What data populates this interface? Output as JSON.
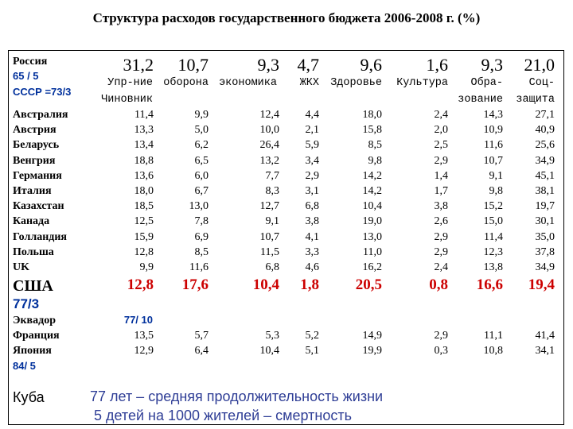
{
  "title": "Структура расходов государственного  бюджета 2006-2008 г. (%)",
  "russia": {
    "label": "Россия",
    "life_stat": "65 / 5",
    "ussr_stat": "СССР  =73/3",
    "values": [
      "31,2",
      "10,7",
      "9,3",
      "4,7",
      "9,6",
      "1,6",
      "9,3",
      "21,0"
    ]
  },
  "headers": {
    "col1_line1": "Упр-ние",
    "col1_line2": "Чиновник",
    "col2": "оборона",
    "col3": "экономика",
    "col4": "ЖКХ",
    "col5": "Здоровье",
    "col6": "Культура",
    "col7_line1": "Обра-",
    "col7_line2": "зование",
    "col8_line1": "Соц-",
    "col8_line2": "защита"
  },
  "rows": [
    {
      "country": "Австралия",
      "values": [
        "11,4",
        "9,9",
        "12,4",
        "4,4",
        "18,0",
        "2,4",
        "14,3",
        "27,1"
      ]
    },
    {
      "country": "Австрия",
      "values": [
        "13,3",
        "5,0",
        "10,0",
        "2,1",
        "15,8",
        "2,0",
        "10,9",
        "40,9"
      ]
    },
    {
      "country": "Беларусь",
      "values": [
        "13,4",
        "6,2",
        "26,4",
        "5,9",
        "8,5",
        "2,5",
        "11,6",
        "25,6"
      ]
    },
    {
      "country": "Венгрия",
      "values": [
        "18,8",
        "6,5",
        "13,2",
        "3,4",
        "9,8",
        "2,9",
        "10,7",
        "34,9"
      ]
    },
    {
      "country": "Германия",
      "values": [
        "13,6",
        "6,0",
        "7,7",
        "2,9",
        "14,2",
        "1,4",
        "9,1",
        "45,1"
      ]
    },
    {
      "country": "Италия",
      "values": [
        "18,0",
        "6,7",
        "8,3",
        "3,1",
        "14,2",
        "1,7",
        "9,8",
        "38,1"
      ]
    },
    {
      "country": "Казахстан",
      "values": [
        "18,5",
        "13,0",
        "12,7",
        "6,8",
        "10,4",
        "3,8",
        "15,2",
        "19,7"
      ]
    },
    {
      "country": "Канада",
      "values": [
        "12,5",
        "7,8",
        "9,1",
        "3,8",
        "19,0",
        "2,6",
        "15,0",
        "30,1"
      ]
    },
    {
      "country": "Голландия",
      "values": [
        "15,9",
        "6,9",
        "10,7",
        "4,1",
        "13,0",
        "2,9",
        "11,4",
        "35,0"
      ]
    },
    {
      "country": "Польша",
      "values": [
        "12,8",
        "8,5",
        "11,5",
        "3,3",
        "11,0",
        "2,9",
        "12,3",
        "37,8"
      ]
    },
    {
      "country": "UK",
      "values": [
        "9,9",
        "11,6",
        "6,8",
        "4,6",
        "16,2",
        "2,4",
        "13,8",
        "34,9"
      ]
    }
  ],
  "usa": {
    "label": "США",
    "life_stat": "77/3",
    "values": [
      "12,8",
      "17,6",
      "10,4",
      "1,8",
      "20,5",
      "0,8",
      "16,6",
      "19,4"
    ]
  },
  "ecuador": {
    "label": "Эквадор",
    "life_stat": "77/ 10"
  },
  "france": {
    "label": "Франция",
    "values": [
      "13,5",
      "5,7",
      "5,3",
      "5,2",
      "14,9",
      "2,9",
      "11,1",
      "41,4"
    ]
  },
  "japan": {
    "label": "Япония",
    "life_stat": "84/ 5",
    "values": [
      "12,9",
      "6,4",
      "10,4",
      "5,1",
      "19,9",
      "0,3",
      "10,8",
      "34,1"
    ]
  },
  "cuba": {
    "label": "Куба",
    "note_line1": "77 лет – средняя продолжительность жизни",
    "note_line2": "5 детей на 1000 жителей – смертность"
  },
  "colors": {
    "red": "#cc0000",
    "blue_stat": "#00309c",
    "note": "#2f3e96"
  }
}
